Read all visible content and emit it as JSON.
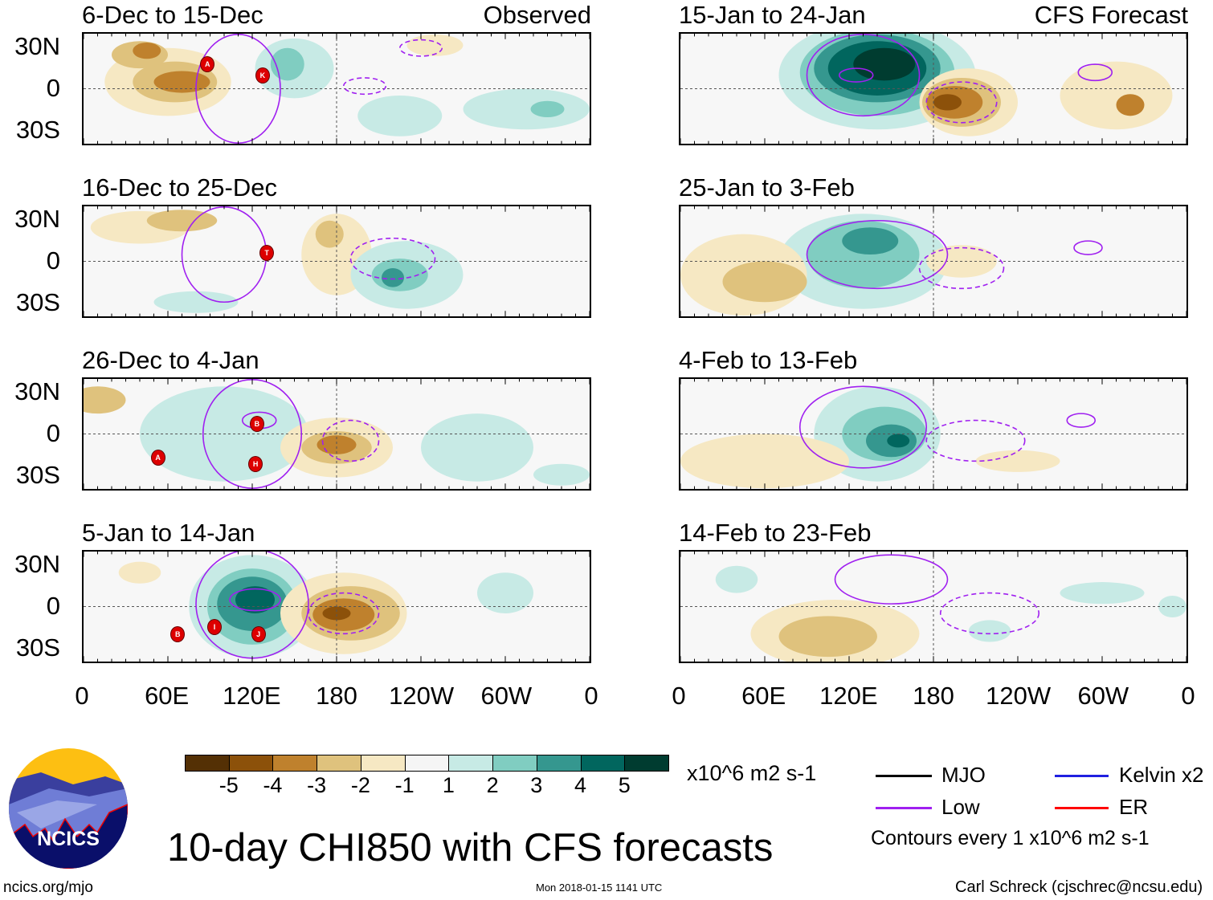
{
  "title": "10-day CHI850 with CFS forecasts",
  "site": "ncics.org/mjo",
  "logo_text": "NCICS",
  "timestamp": "Mon 2018-01-15 1141 UTC",
  "credit": "Carl Schreck (cjschrec@ncsu.edu)",
  "column_labels": {
    "left": "Observed",
    "right": "CFS Forecast"
  },
  "lat_labels": [
    "30N",
    "0",
    "30S"
  ],
  "lon_labels": [
    "0",
    "60E",
    "120E",
    "180",
    "120W",
    "60W",
    "0"
  ],
  "colorbar": {
    "colors": [
      "#543005",
      "#8c510a",
      "#bf812d",
      "#dfc27d",
      "#f6e8c3",
      "#f5f5f5",
      "#c7eae5",
      "#80cdc1",
      "#35978f",
      "#01665e",
      "#003c30"
    ],
    "labels": [
      "-5",
      "-4",
      "-3",
      "-2",
      "-1",
      "1",
      "2",
      "3",
      "4",
      "5"
    ],
    "units": "x10^6 m2 s-1"
  },
  "legend": {
    "items": [
      {
        "label": "MJO",
        "color": "#000000"
      },
      {
        "label": "Kelvin x2",
        "color": "#2020e0"
      },
      {
        "label": "Low",
        "color": "#a020f0"
      },
      {
        "label": "ER",
        "color": "#ff0000"
      }
    ],
    "note": "Contours every 1 x10^6 m2 s-1"
  },
  "chart_data": {
    "type": "heatmap",
    "variable": "CHI850 anomaly (x10^6 m2 s-1)",
    "lon_range": [
      0,
      360
    ],
    "lat_range": [
      -40,
      40
    ],
    "panels": [
      {
        "title": "6-Dec to 15-Dec",
        "kind": "Observed",
        "anomalies": [
          [
            60,
            5,
            45,
            25,
            -1
          ],
          [
            65,
            5,
            30,
            15,
            -2
          ],
          [
            70,
            5,
            20,
            8,
            -3
          ],
          [
            40,
            25,
            20,
            10,
            -2
          ],
          [
            45,
            28,
            10,
            6,
            -3
          ],
          [
            150,
            15,
            28,
            22,
            1
          ],
          [
            145,
            18,
            12,
            12,
            2
          ],
          [
            225,
            -20,
            30,
            15,
            1
          ],
          [
            315,
            -15,
            45,
            15,
            1
          ],
          [
            330,
            -15,
            12,
            6,
            2
          ],
          [
            250,
            32,
            20,
            8,
            -1
          ]
        ],
        "contours": [
          [
            110,
            0,
            30,
            40,
            "solid"
          ],
          [
            200,
            2,
            15,
            6,
            "dashed"
          ],
          [
            240,
            30,
            15,
            6,
            "dashed"
          ]
        ],
        "storms": [
          [
            87,
            19,
            "A"
          ],
          [
            126,
            11,
            "K"
          ]
        ]
      },
      {
        "title": "16-Dec to 25-Dec",
        "kind": "Observed",
        "anomalies": [
          [
            40,
            25,
            35,
            12,
            -1
          ],
          [
            70,
            30,
            25,
            8,
            -2
          ],
          [
            180,
            5,
            25,
            30,
            -1
          ],
          [
            175,
            20,
            10,
            10,
            -2
          ],
          [
            230,
            -10,
            40,
            25,
            1
          ],
          [
            225,
            -10,
            20,
            12,
            2
          ],
          [
            220,
            -12,
            8,
            7,
            3
          ],
          [
            80,
            -30,
            30,
            8,
            1
          ]
        ],
        "contours": [
          [
            100,
            5,
            30,
            35,
            "solid"
          ],
          [
            220,
            2,
            30,
            15,
            "dashed"
          ]
        ],
        "storms": [
          [
            129,
            8,
            "T"
          ]
        ]
      },
      {
        "title": "26-Dec to 4-Jan",
        "kind": "Observed",
        "anomalies": [
          [
            100,
            0,
            60,
            35,
            1
          ],
          [
            180,
            -10,
            40,
            22,
            -1
          ],
          [
            180,
            -10,
            25,
            12,
            -2
          ],
          [
            180,
            -8,
            14,
            7,
            -3
          ],
          [
            280,
            -10,
            40,
            25,
            1
          ],
          [
            10,
            25,
            20,
            10,
            -2
          ],
          [
            340,
            -30,
            20,
            8,
            1
          ]
        ],
        "contours": [
          [
            120,
            0,
            35,
            40,
            "solid"
          ],
          [
            125,
            10,
            12,
            6,
            "solid"
          ],
          [
            190,
            -5,
            20,
            15,
            "dashed"
          ]
        ],
        "storms": [
          [
            122,
            9,
            "B"
          ],
          [
            52,
            -15,
            "A"
          ],
          [
            121,
            -20,
            "H"
          ]
        ],
        "note": ""
      },
      {
        "title": "5-Jan to 14-Jan",
        "kind": "Observed",
        "anomalies": [
          [
            120,
            0,
            45,
            38,
            1
          ],
          [
            120,
            0,
            32,
            28,
            2
          ],
          [
            120,
            2,
            25,
            20,
            3
          ],
          [
            122,
            5,
            14,
            10,
            4
          ],
          [
            185,
            -5,
            45,
            30,
            -1
          ],
          [
            190,
            -5,
            35,
            20,
            -2
          ],
          [
            185,
            -6,
            22,
            12,
            -3
          ],
          [
            180,
            -5,
            10,
            5,
            -4
          ],
          [
            300,
            10,
            20,
            15,
            1
          ],
          [
            40,
            25,
            15,
            8,
            -1
          ]
        ],
        "contours": [
          [
            120,
            2,
            40,
            40,
            "solid"
          ],
          [
            122,
            5,
            18,
            8,
            "solid"
          ],
          [
            185,
            -5,
            25,
            15,
            "dashed"
          ]
        ],
        "storms": [
          [
            66,
            -18,
            "B"
          ],
          [
            92,
            -13,
            "I"
          ],
          [
            123,
            -18,
            "J"
          ]
        ]
      },
      {
        "title": "15-Jan to 24-Jan",
        "kind": "CFS Forecast",
        "anomalies": [
          [
            140,
            10,
            70,
            40,
            1
          ],
          [
            140,
            12,
            55,
            32,
            2
          ],
          [
            140,
            15,
            45,
            25,
            3
          ],
          [
            140,
            15,
            35,
            20,
            4
          ],
          [
            145,
            18,
            22,
            12,
            5
          ],
          [
            205,
            -10,
            35,
            25,
            -1
          ],
          [
            200,
            -10,
            28,
            18,
            -2
          ],
          [
            195,
            -10,
            20,
            12,
            -3
          ],
          [
            190,
            -10,
            10,
            6,
            -4
          ],
          [
            310,
            -5,
            40,
            25,
            -1
          ],
          [
            320,
            -12,
            10,
            8,
            -3
          ]
        ],
        "contours": [
          [
            130,
            10,
            40,
            30,
            "solid"
          ],
          [
            125,
            10,
            12,
            5,
            "solid"
          ],
          [
            200,
            -10,
            25,
            15,
            "dashed"
          ],
          [
            295,
            12,
            12,
            6,
            "solid"
          ]
        ],
        "storms": []
      },
      {
        "title": "25-Jan to 3-Feb",
        "kind": "CFS Forecast",
        "anomalies": [
          [
            130,
            0,
            60,
            35,
            1
          ],
          [
            130,
            5,
            40,
            25,
            2
          ],
          [
            135,
            15,
            20,
            10,
            3
          ],
          [
            45,
            -10,
            45,
            30,
            -1
          ],
          [
            60,
            -15,
            30,
            15,
            -2
          ],
          [
            200,
            0,
            25,
            12,
            -1
          ]
        ],
        "contours": [
          [
            140,
            5,
            50,
            25,
            "solid"
          ],
          [
            200,
            -5,
            30,
            15,
            "dashed"
          ],
          [
            290,
            10,
            10,
            5,
            "solid"
          ]
        ],
        "storms": []
      },
      {
        "title": "4-Feb to 13-Feb",
        "kind": "CFS Forecast",
        "anomalies": [
          [
            140,
            0,
            45,
            35,
            1
          ],
          [
            145,
            0,
            30,
            20,
            2
          ],
          [
            150,
            -5,
            18,
            12,
            3
          ],
          [
            155,
            -5,
            8,
            5,
            4
          ],
          [
            60,
            -20,
            60,
            20,
            -1
          ],
          [
            240,
            -20,
            30,
            8,
            -1
          ]
        ],
        "contours": [
          [
            130,
            5,
            45,
            30,
            "solid"
          ],
          [
            210,
            -5,
            35,
            15,
            "dashed"
          ],
          [
            285,
            10,
            10,
            5,
            "solid"
          ]
        ],
        "storms": []
      },
      {
        "title": "14-Feb to 23-Feb",
        "kind": "CFS Forecast",
        "anomalies": [
          [
            110,
            -20,
            60,
            25,
            -1
          ],
          [
            105,
            -22,
            35,
            15,
            -2
          ],
          [
            40,
            20,
            15,
            10,
            1
          ],
          [
            220,
            -18,
            15,
            8,
            1
          ],
          [
            300,
            10,
            30,
            8,
            1
          ],
          [
            350,
            0,
            10,
            8,
            1
          ]
        ],
        "contours": [
          [
            150,
            20,
            40,
            18,
            "solid"
          ],
          [
            220,
            -5,
            35,
            15,
            "dashed"
          ]
        ],
        "storms": []
      }
    ]
  }
}
